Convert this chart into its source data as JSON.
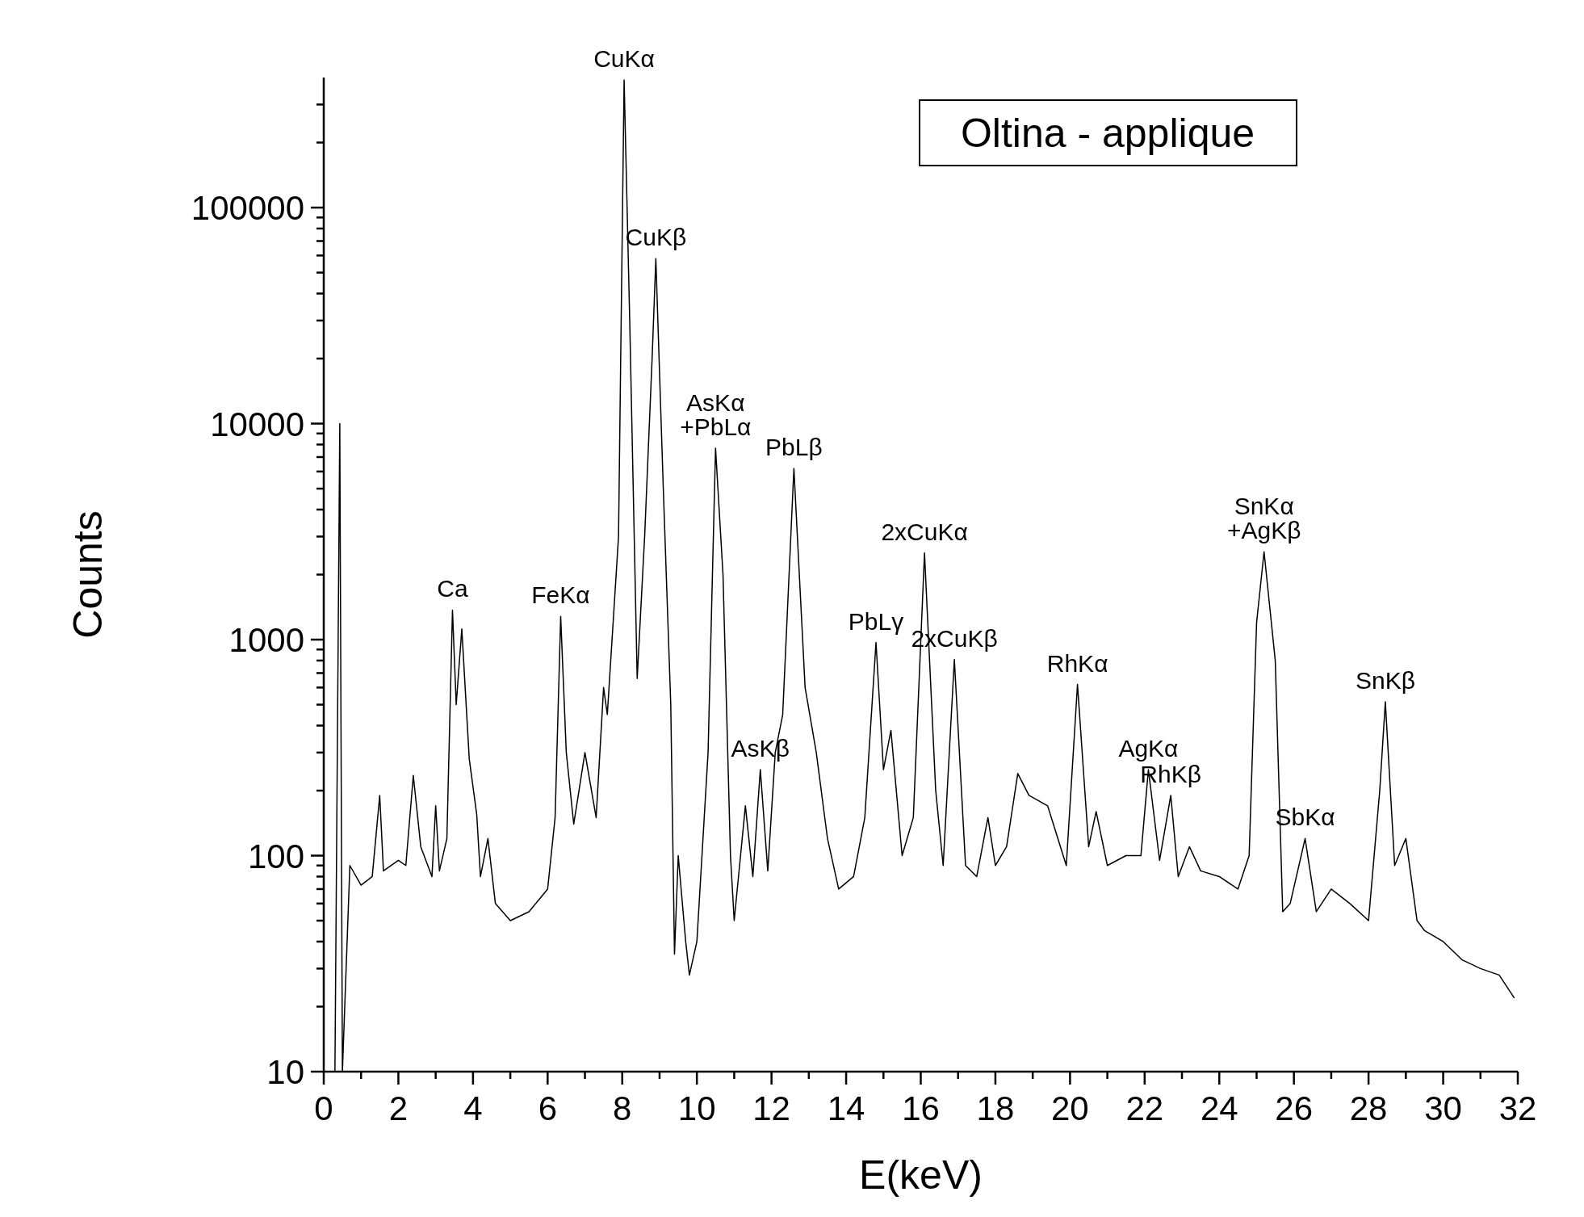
{
  "chart_data": {
    "type": "line",
    "title": "Oltina - applique",
    "xlabel": "E(keV)",
    "ylabel": "Counts",
    "log": "y",
    "grid": false,
    "marker": "none",
    "line_style": "solid",
    "xlim": [
      0,
      32
    ],
    "ylim": [
      10,
      400000
    ],
    "xticks": [
      0,
      {
        "value": 1,
        "label": null
      },
      2,
      {
        "value": 3,
        "label": null
      },
      4,
      {
        "value": 5,
        "label": null
      },
      6,
      {
        "value": 7,
        "label": null
      },
      8,
      {
        "value": 9,
        "label": null
      },
      10,
      {
        "value": 11,
        "label": null
      },
      12,
      {
        "value": 13,
        "label": null
      },
      14,
      {
        "value": 15,
        "label": null
      },
      16,
      {
        "value": 17,
        "label": null
      },
      18,
      {
        "value": 19,
        "label": null
      },
      20,
      {
        "value": 21,
        "label": null
      },
      22,
      {
        "value": 23,
        "label": null
      },
      24,
      {
        "value": 25,
        "label": null
      },
      26,
      {
        "value": 27,
        "label": null
      },
      28,
      {
        "value": 29,
        "label": null
      },
      30,
      {
        "value": 31,
        "label": null
      },
      32
    ],
    "yticks": [
      10,
      {
        "value": 20,
        "label": null
      },
      {
        "value": 30,
        "label": null
      },
      {
        "value": 40,
        "label": null
      },
      {
        "value": 50,
        "label": null
      },
      {
        "value": 60,
        "label": null
      },
      {
        "value": 70,
        "label": null
      },
      {
        "value": 80,
        "label": null
      },
      {
        "value": 90,
        "label": null
      },
      100,
      {
        "value": 200,
        "label": null
      },
      {
        "value": 300,
        "label": null
      },
      {
        "value": 400,
        "label": null
      },
      {
        "value": 500,
        "label": null
      },
      {
        "value": 600,
        "label": null
      },
      {
        "value": 700,
        "label": null
      },
      {
        "value": 800,
        "label": null
      },
      {
        "value": 900,
        "label": null
      },
      1000,
      {
        "value": 2000,
        "label": null
      },
      {
        "value": 3000,
        "label": null
      },
      {
        "value": 4000,
        "label": null
      },
      {
        "value": 5000,
        "label": null
      },
      {
        "value": 6000,
        "label": null
      },
      {
        "value": 7000,
        "label": null
      },
      {
        "value": 8000,
        "label": null
      },
      {
        "value": 9000,
        "label": null
      },
      10000,
      {
        "value": 20000,
        "label": null
      },
      {
        "value": 30000,
        "label": null
      },
      {
        "value": 40000,
        "label": null
      },
      {
        "value": 50000,
        "label": null
      },
      {
        "value": 60000,
        "label": null
      },
      {
        "value": 70000,
        "label": null
      },
      {
        "value": 80000,
        "label": null
      },
      {
        "value": 90000,
        "label": null
      },
      100000,
      {
        "value": 200000,
        "label": null
      },
      {
        "value": 300000,
        "label": null
      }
    ],
    "series": [
      {
        "color": "#000000",
        "x": [
          0.3,
          0.43,
          0.5,
          0.7,
          1.0,
          1.3,
          1.5,
          1.6,
          2.0,
          2.2,
          2.4,
          2.6,
          2.9,
          3.0,
          3.1,
          3.3,
          3.45,
          3.55,
          3.7,
          3.9,
          4.1,
          4.2,
          4.4,
          4.6,
          5.0,
          5.5,
          6.0,
          6.2,
          6.35,
          6.5,
          6.7,
          7.0,
          7.3,
          7.5,
          7.6,
          7.9,
          8.05,
          8.2,
          8.4,
          8.6,
          8.8,
          8.9,
          9.1,
          9.3,
          9.4,
          9.5,
          9.7,
          9.8,
          10.0,
          10.3,
          10.5,
          10.7,
          10.9,
          11.0,
          11.3,
          11.5,
          11.7,
          11.9,
          12.1,
          12.3,
          12.6,
          12.9,
          13.2,
          13.5,
          13.8,
          14.2,
          14.5,
          14.8,
          15.0,
          15.2,
          15.5,
          15.8,
          16.1,
          16.4,
          16.6,
          16.9,
          17.2,
          17.5,
          17.8,
          18.0,
          18.3,
          18.6,
          18.9,
          19.4,
          19.9,
          20.2,
          20.5,
          20.7,
          21.0,
          21.5,
          21.9,
          22.1,
          22.4,
          22.7,
          22.9,
          23.2,
          23.5,
          24.0,
          24.5,
          24.8,
          25.0,
          25.2,
          25.5,
          25.7,
          25.9,
          26.3,
          26.6,
          27.0,
          27.5,
          28.0,
          28.3,
          28.45,
          28.7,
          29.0,
          29.3,
          29.5,
          30.0,
          30.5,
          31.0,
          31.5,
          31.9
        ],
        "values": [
          10,
          10000,
          10,
          90,
          73,
          80,
          190,
          85,
          95,
          90,
          235,
          110,
          80,
          170,
          85,
          120,
          1370,
          500,
          1120,
          280,
          155,
          80,
          120,
          60,
          50,
          55,
          70,
          150,
          1280,
          300,
          140,
          300,
          150,
          600,
          450,
          3000,
          390000,
          30000,
          660,
          3000,
          20000,
          58000,
          5000,
          500,
          35,
          100,
          40,
          28,
          40,
          300,
          7700,
          2000,
          100,
          50,
          170,
          80,
          250,
          85,
          300,
          450,
          6200,
          600,
          300,
          120,
          70,
          80,
          150,
          970,
          250,
          380,
          100,
          150,
          2520,
          200,
          90,
          810,
          90,
          80,
          150,
          90,
          110,
          240,
          190,
          170,
          90,
          620,
          110,
          160,
          90,
          100,
          100,
          250,
          95,
          190,
          80,
          110,
          85,
          80,
          70,
          100,
          1200,
          2550,
          800,
          55,
          60,
          120,
          55,
          70,
          60,
          50,
          200,
          515,
          90,
          120,
          50,
          45,
          40,
          33,
          30,
          28,
          22
        ]
      }
    ],
    "annotations": [
      {
        "text": "Ca",
        "x": 3.45,
        "y": 1370
      },
      {
        "text": "FeKα",
        "x": 6.35,
        "y": 1280
      },
      {
        "text": "CuKα",
        "x": 8.05,
        "y": 390000
      },
      {
        "text": "CuKβ",
        "x": 8.9,
        "y": 58000
      },
      {
        "text": "AsKα\n+PbLα",
        "x": 10.5,
        "y": 7700
      },
      {
        "text": "AsKβ",
        "x": 11.7,
        "y": 250
      },
      {
        "text": "PbLβ",
        "x": 12.6,
        "y": 6200
      },
      {
        "text": "PbLγ",
        "x": 14.8,
        "y": 970
      },
      {
        "text": "2xCuKα",
        "x": 16.1,
        "y": 2520
      },
      {
        "text": "2xCuKβ",
        "x": 16.9,
        "y": 810
      },
      {
        "text": "RhKα",
        "x": 20.2,
        "y": 620
      },
      {
        "text": "AgKα",
        "x": 22.1,
        "y": 250
      },
      {
        "text": "RhKβ",
        "x": 22.7,
        "y": 190
      },
      {
        "text": "SnKα\n+AgKβ",
        "x": 25.2,
        "y": 2550
      },
      {
        "text": "SbKα",
        "x": 26.3,
        "y": 120
      },
      {
        "text": "SnKβ",
        "x": 28.45,
        "y": 515
      }
    ]
  }
}
